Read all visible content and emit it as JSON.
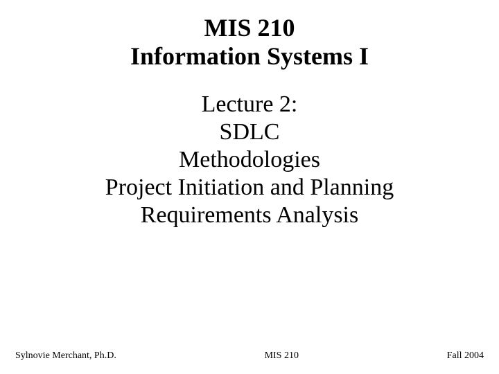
{
  "title": {
    "line1": "MIS 210",
    "line2": "Information Systems I",
    "fontsize": 36,
    "fontweight": "bold",
    "color": "#000000"
  },
  "body": {
    "lines": [
      "Lecture 2:",
      "SDLC",
      "Methodologies",
      "Project Initiation and Planning",
      "Requirements Analysis"
    ],
    "fontsize": 34,
    "fontweight": "normal",
    "color": "#000000"
  },
  "footer": {
    "left": "Sylnovie Merchant, Ph.D.",
    "center": "MIS 210",
    "right": "Fall 2004",
    "fontsize": 14,
    "color": "#000000"
  },
  "background_color": "#ffffff"
}
